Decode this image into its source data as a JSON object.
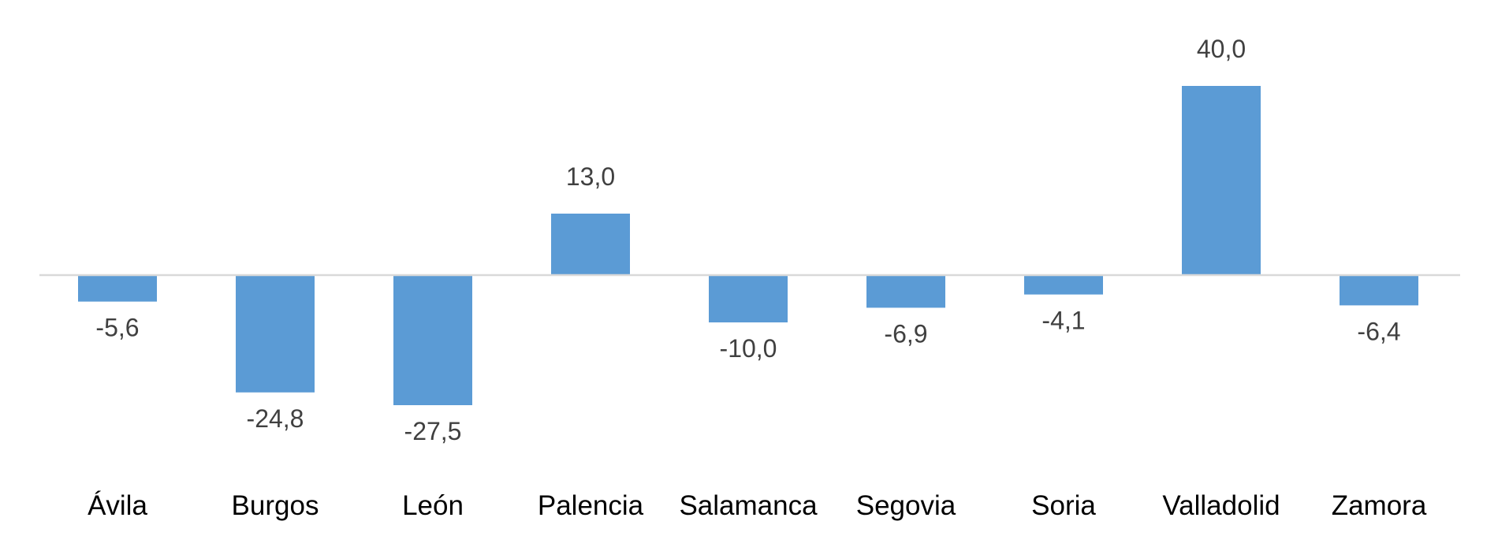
{
  "chart_data": {
    "type": "bar",
    "categories": [
      "Ávila",
      "Burgos",
      "León",
      "Palencia",
      "Salamanca",
      "Segovia",
      "Soria",
      "Valladolid",
      "Zamora"
    ],
    "values": [
      -5.6,
      -24.8,
      -27.5,
      13.0,
      -10.0,
      -6.9,
      -4.1,
      40.0,
      -6.4
    ],
    "data_labels": [
      "-5,6",
      "-24,8",
      "-27,5",
      "13,0",
      "-10,0",
      "-6,9",
      "-4,1",
      "40,0",
      "-6,4"
    ],
    "title": "",
    "xlabel": "",
    "ylabel": "",
    "grid": false,
    "legend": "none",
    "bar_color": "#5b9bd5",
    "axis_color": "#d9d9d9",
    "label_color": "#404040"
  }
}
